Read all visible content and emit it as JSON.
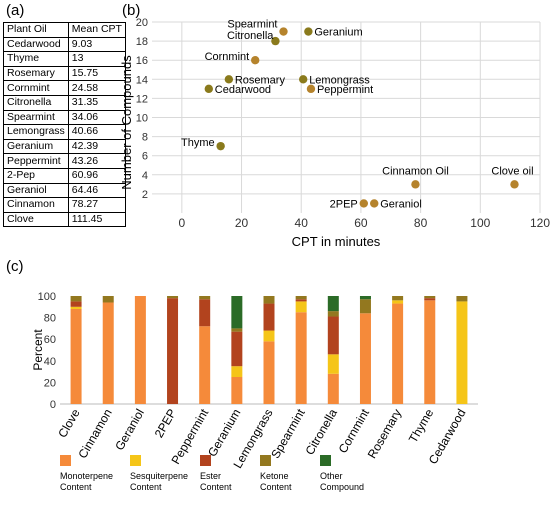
{
  "panel_labels": {
    "a": "(a)",
    "b": "(b)",
    "c": "(c)"
  },
  "table": {
    "headers": [
      "Plant Oil",
      "Mean CPT"
    ],
    "rows": [
      [
        "Cedarwood",
        "9.03"
      ],
      [
        "Thyme",
        "13"
      ],
      [
        "Rosemary",
        "15.75"
      ],
      [
        "Cornmint",
        "24.58"
      ],
      [
        "Citronella",
        "31.35"
      ],
      [
        "Spearmint",
        "34.06"
      ],
      [
        "Lemongrass",
        "40.66"
      ],
      [
        "Geranium",
        "42.39"
      ],
      [
        "Peppermint",
        "43.26"
      ],
      [
        "2-Pep",
        "60.96"
      ],
      [
        "Geraniol",
        "64.46"
      ],
      [
        "Cinnamon",
        "78.27"
      ],
      [
        "Clove",
        "111.45"
      ]
    ]
  },
  "chart_data": [
    {
      "type": "scatter",
      "title": "",
      "xlabel": "CPT in minutes",
      "ylabel": "Number of Compounds",
      "xlim": [
        -10,
        120
      ],
      "ylim": [
        0,
        20
      ],
      "xticks": [
        0,
        20,
        40,
        60,
        80,
        100,
        120
      ],
      "yticks": [
        2,
        4,
        6,
        8,
        10,
        12,
        14,
        16,
        18,
        20
      ],
      "grid": true,
      "colors": {
        "a": "#b5832c",
        "b": "#8a7a1c"
      },
      "points": [
        {
          "label": "Cedarwood",
          "x": 9.03,
          "y": 13,
          "c": "b"
        },
        {
          "label": "Thyme",
          "x": 13,
          "y": 7,
          "c": "b"
        },
        {
          "label": "Rosemary",
          "x": 15.75,
          "y": 14,
          "c": "b"
        },
        {
          "label": "Cornmint",
          "x": 24.58,
          "y": 16,
          "c": "a"
        },
        {
          "label": "Citronella",
          "x": 31.35,
          "y": 18,
          "c": "b"
        },
        {
          "label": "Spearmint",
          "x": 34.06,
          "y": 19,
          "c": "a"
        },
        {
          "label": "Lemongrass",
          "x": 40.66,
          "y": 14,
          "c": "b"
        },
        {
          "label": "Geranium",
          "x": 42.39,
          "y": 19,
          "c": "b"
        },
        {
          "label": "Peppermint",
          "x": 43.26,
          "y": 13,
          "c": "a"
        },
        {
          "label": "2PEP",
          "x": 60.96,
          "y": 1,
          "c": "a"
        },
        {
          "label": "Geraniol",
          "x": 64.46,
          "y": 1,
          "c": "a"
        },
        {
          "label": "Cinnamon Oil",
          "x": 78.27,
          "y": 3,
          "c": "a"
        },
        {
          "label": "Clove oil",
          "x": 111.45,
          "y": 3,
          "c": "a"
        }
      ]
    },
    {
      "type": "bar",
      "stacked": true,
      "title": "",
      "xlabel": "",
      "ylabel": "Percent",
      "ylim": [
        0,
        100
      ],
      "yticks": [
        0,
        20,
        40,
        60,
        80,
        100
      ],
      "legend_position": "bottom",
      "categories": [
        "Clove",
        "Cinnamon",
        "Geraniol",
        "2PEP",
        "Peppermint",
        "Geranium",
        "Lemongrass",
        "Spearmint",
        "Citronella",
        "Cornmint",
        "Rosemary",
        "Thyme",
        "Cedarwood"
      ],
      "series": [
        {
          "name": "Monoterpene Content",
          "color": "#f58a3a",
          "values": [
            88,
            94,
            100,
            0,
            72,
            25,
            58,
            85,
            28,
            84,
            93,
            96,
            0
          ]
        },
        {
          "name": "Sesquiterpene Content",
          "color": "#f5c518",
          "values": [
            2,
            0,
            0,
            0,
            0,
            10,
            10,
            10,
            18,
            0,
            3,
            0,
            95
          ]
        },
        {
          "name": "Ester Content",
          "color": "#b2431e",
          "values": [
            5,
            0,
            0,
            98,
            25,
            32,
            25,
            2,
            35,
            0,
            0,
            2,
            0
          ]
        },
        {
          "name": "Ketone Content",
          "color": "#93781f",
          "values": [
            5,
            6,
            0,
            2,
            3,
            3,
            7,
            3,
            5,
            13,
            4,
            2,
            5
          ]
        },
        {
          "name": "Other Compound",
          "color": "#2b6b27",
          "values": [
            0,
            0,
            0,
            0,
            0,
            30,
            0,
            0,
            14,
            3,
            0,
            0,
            0
          ]
        }
      ]
    }
  ]
}
